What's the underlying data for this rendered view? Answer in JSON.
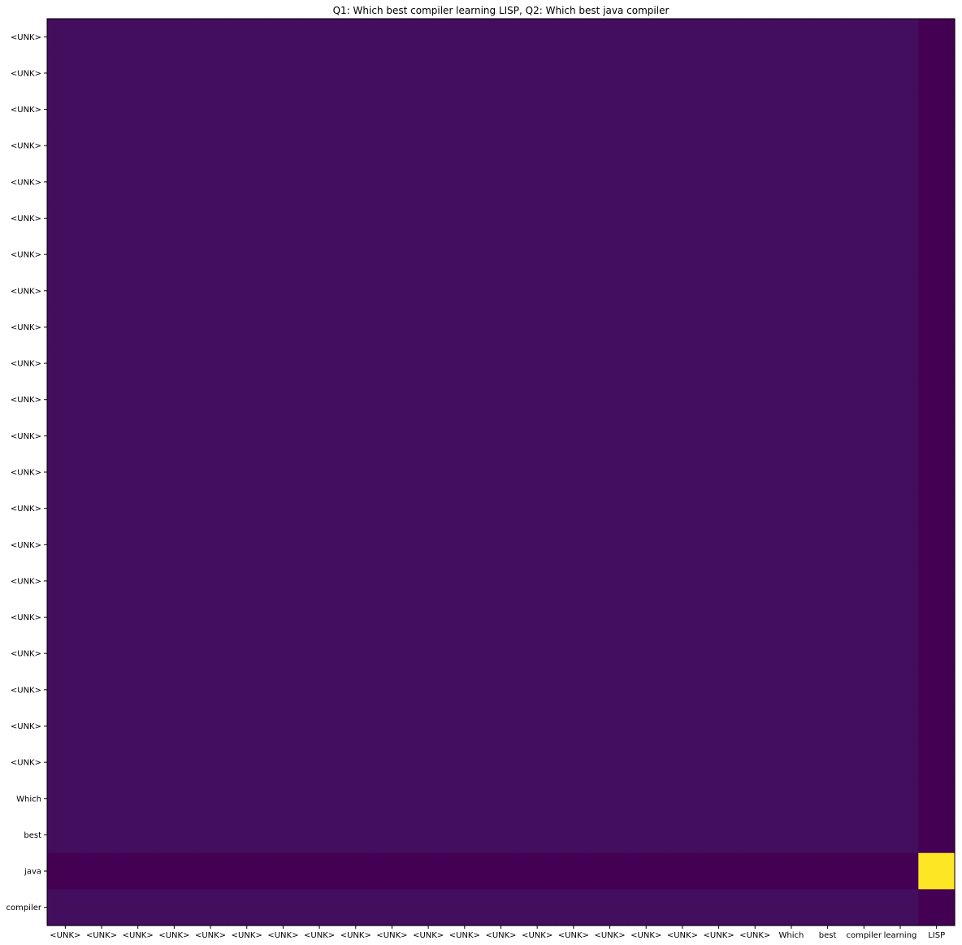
{
  "chart_data": {
    "type": "heatmap",
    "title": "Q1: Which best compiler learning LISP, Q2: Which best java compiler",
    "xlabel": "",
    "ylabel": "",
    "x_categories": [
      "<UNK>",
      "<UNK>",
      "<UNK>",
      "<UNK>",
      "<UNK>",
      "<UNK>",
      "<UNK>",
      "<UNK>",
      "<UNK>",
      "<UNK>",
      "<UNK>",
      "<UNK>",
      "<UNK>",
      "<UNK>",
      "<UNK>",
      "<UNK>",
      "<UNK>",
      "<UNK>",
      "<UNK>",
      "<UNK>",
      "Which",
      "best",
      "compiler",
      "learning",
      "LISP"
    ],
    "y_categories": [
      "<UNK>",
      "<UNK>",
      "<UNK>",
      "<UNK>",
      "<UNK>",
      "<UNK>",
      "<UNK>",
      "<UNK>",
      "<UNK>",
      "<UNK>",
      "<UNK>",
      "<UNK>",
      "<UNK>",
      "<UNK>",
      "<UNK>",
      "<UNK>",
      "<UNK>",
      "<UNK>",
      "<UNK>",
      "<UNK>",
      "<UNK>",
      "Which",
      "best",
      "java",
      "compiler"
    ],
    "colormap": "viridis",
    "row_values": {
      "default": {
        "first_24_columns": 0.04,
        "last_column": 0.0
      },
      "java": {
        "first_24_columns": 0.0,
        "last_column": 1.0
      }
    },
    "grid": false,
    "legend": "none"
  }
}
